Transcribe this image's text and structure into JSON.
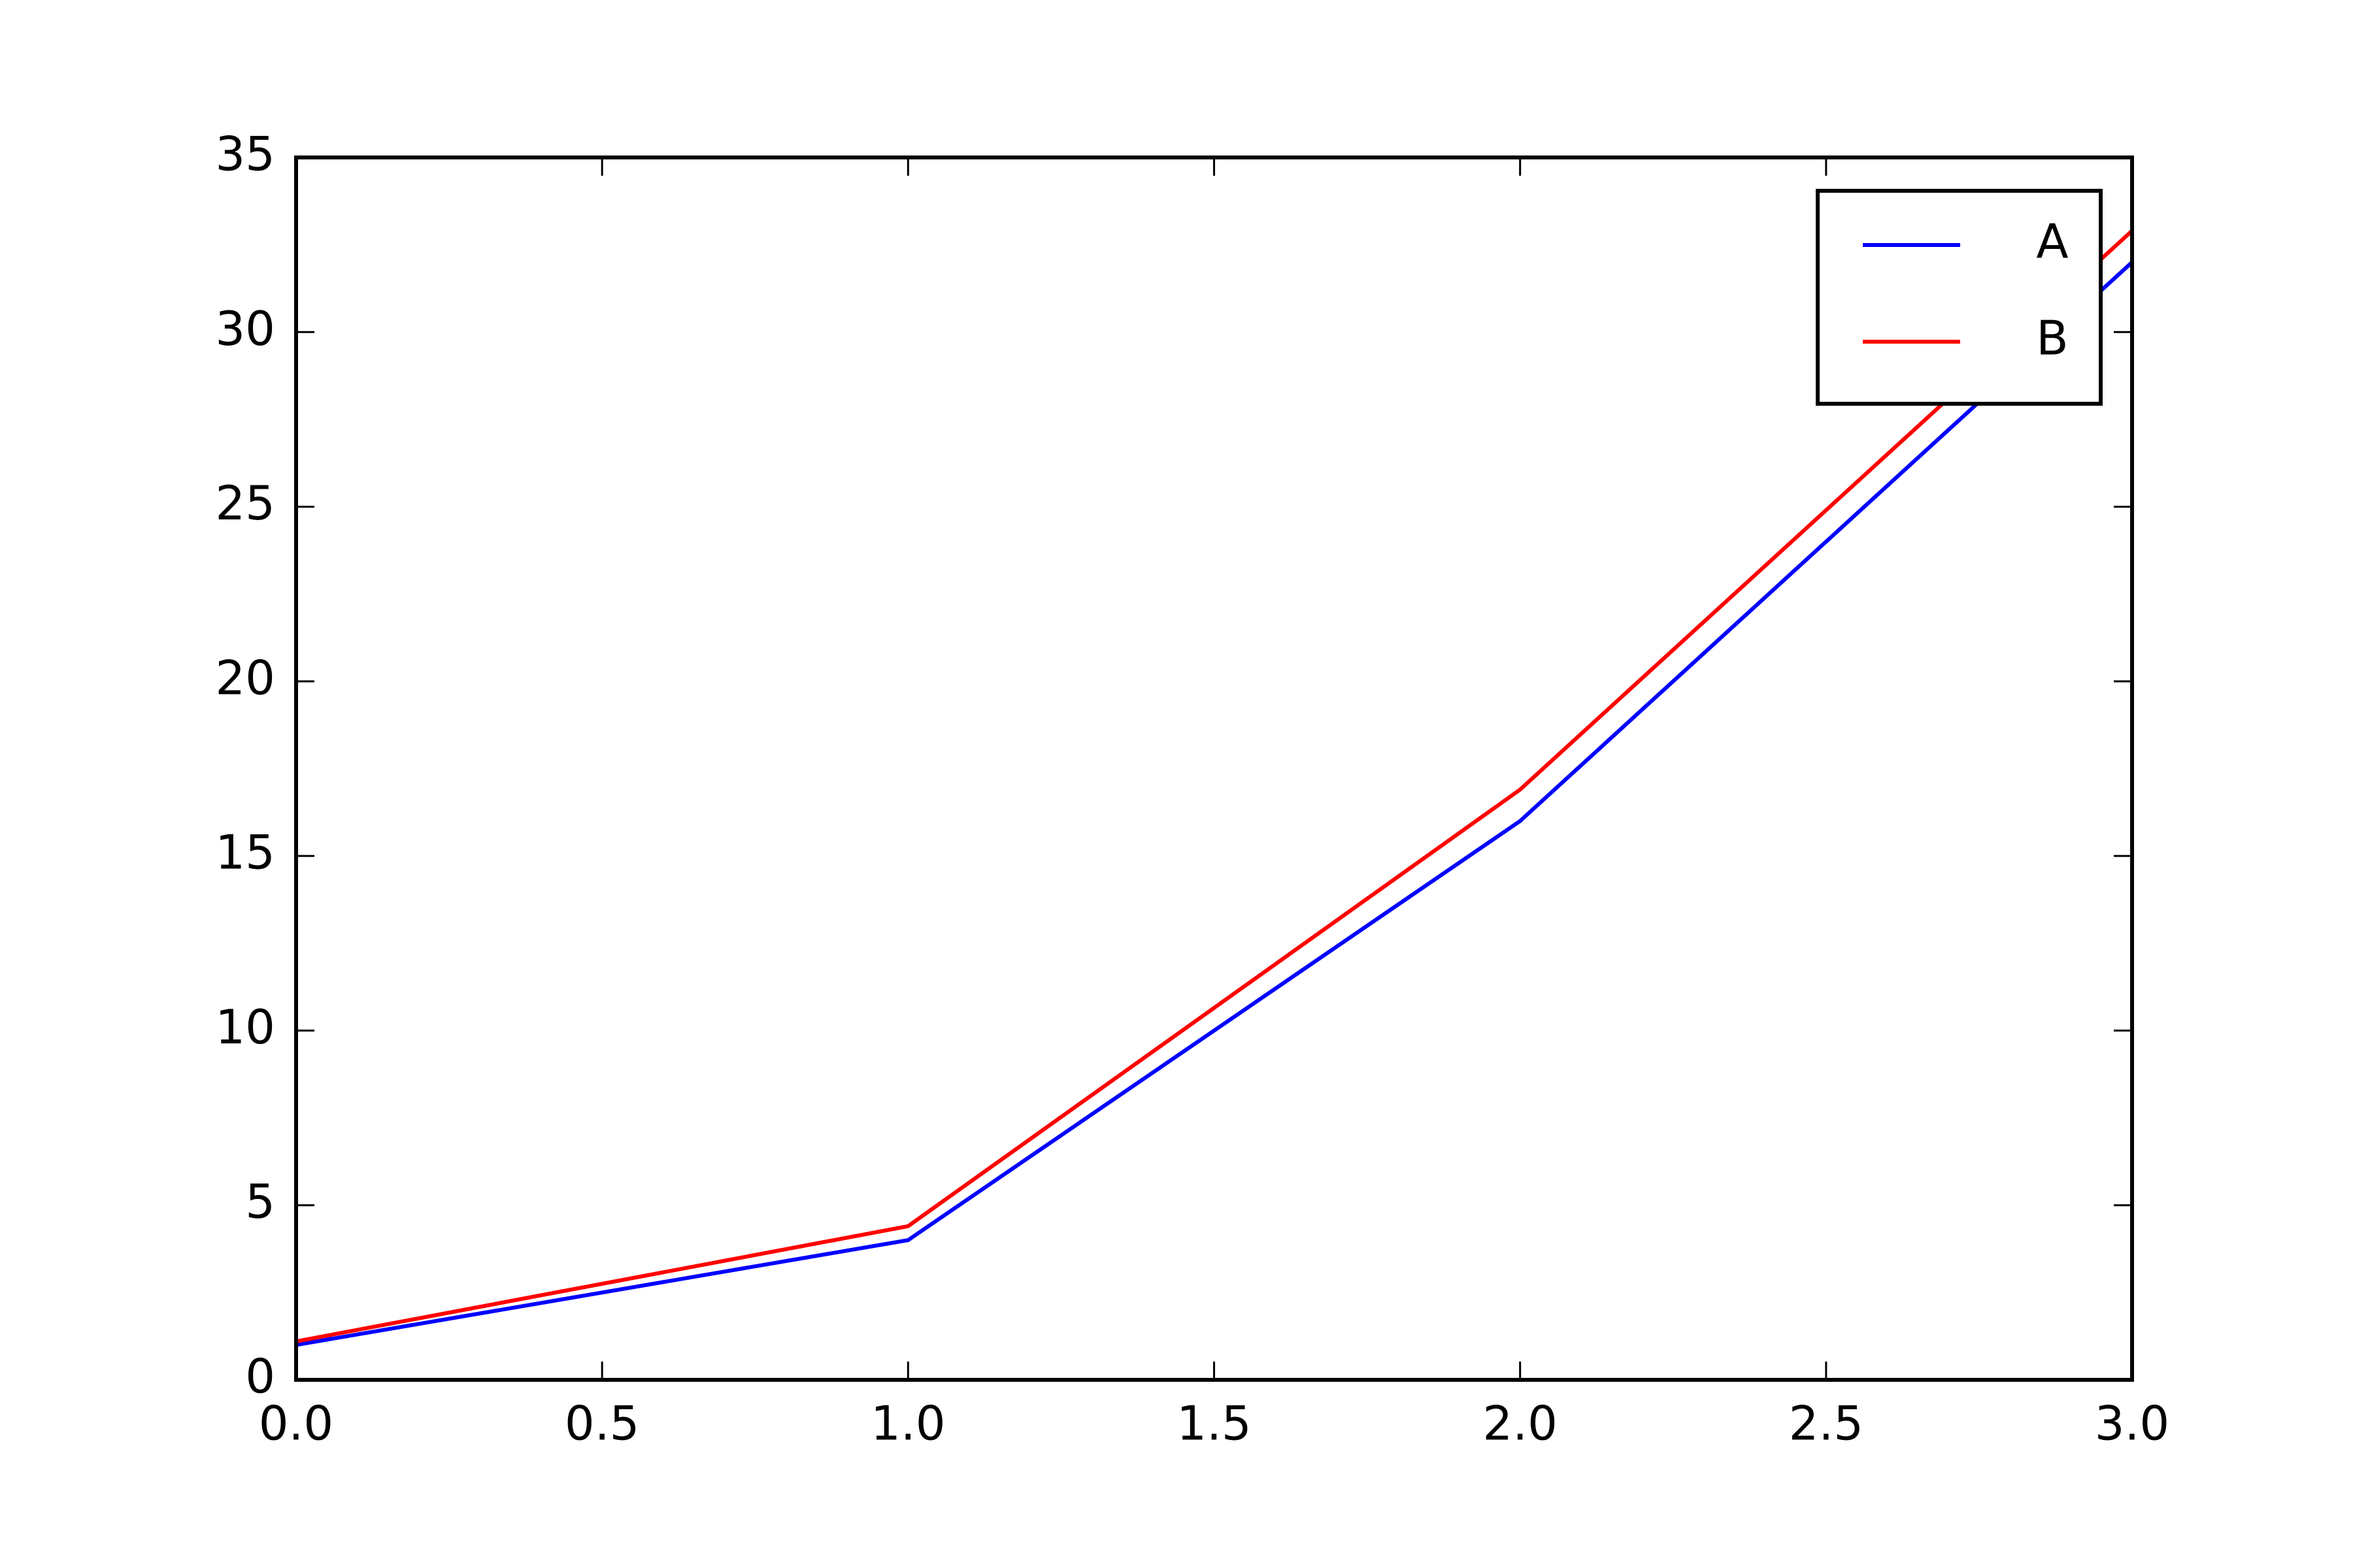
{
  "chart_data": {
    "type": "line",
    "x": [
      0,
      1,
      2,
      3
    ],
    "series": [
      {
        "name": "A",
        "color": "#0000ff",
        "values": [
          1,
          4,
          16,
          32
        ]
      },
      {
        "name": "B",
        "color": "#ff0000",
        "values": [
          1.1,
          4.4,
          16.9,
          32.9
        ]
      }
    ],
    "xlim": [
      0,
      3
    ],
    "xticks": [
      {
        "value": 0,
        "label": "0.0"
      },
      0.5,
      {
        "value": 1,
        "label": "1.0"
      },
      1.5,
      {
        "value": 2,
        "label": "2.0"
      },
      2.5,
      {
        "value": 3,
        "label": "3.0"
      }
    ],
    "ylim": [
      0,
      35
    ],
    "yticks": [
      0,
      5,
      10,
      15,
      20,
      25,
      30,
      35
    ],
    "grid": false,
    "legend": "upper right"
  }
}
